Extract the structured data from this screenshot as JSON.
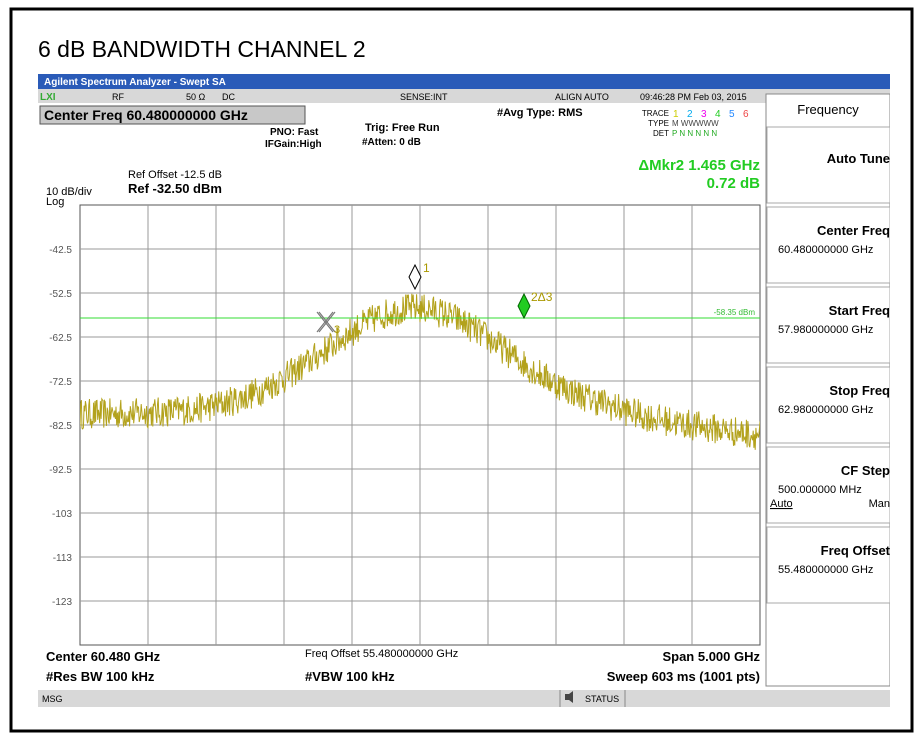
{
  "header": {
    "title": "6 dB BANDWIDTH CHANNEL 2"
  },
  "window": {
    "title": "Agilent Spectrum Analyzer - Swept SA"
  },
  "status": {
    "rf": "RF",
    "impedance": "50 Ω",
    "coupling": "DC",
    "sense": "SENSE:INT",
    "align": "ALIGN AUTO",
    "datetime": "09:46:28 PM Feb 03, 2015"
  },
  "settings": {
    "center_freq": "Center Freq 60.480000000 GHz",
    "pno": "PNO: Fast",
    "ifgain": "IFGain:High",
    "trig": "Trig: Free Run",
    "atten": "#Atten: 0 dB",
    "avg_type": "#Avg Type: RMS",
    "trace_label": "TRACE",
    "trace_numbers": [
      "1",
      "2",
      "3",
      "4",
      "5",
      "6"
    ],
    "type_label": "TYPE",
    "type_value": "M WWWWW",
    "det_label": "DET",
    "det_value": "P N N N N N"
  },
  "marker_readout": {
    "delta": "ΔMkr2 1.465 GHz",
    "level": "0.72 dB"
  },
  "reference": {
    "offset": "Ref Offset -12.5 dB",
    "level": "Ref -32.50 dBm",
    "scale": "10 dB/div",
    "log": "Log"
  },
  "grid_labels": [
    "-42.5",
    "-52.5",
    "-62.5",
    "-72.5",
    "-82.5",
    "-92.5",
    "-103",
    "-113",
    "-123"
  ],
  "markers": {
    "m1": "1",
    "m2": "2Δ3",
    "m3": "3",
    "line_label": "-58.35 dBm"
  },
  "footer": {
    "center": "Center 60.480 GHz",
    "freq_offset": "Freq Offset 55.480000000 GHz",
    "span": "Span 5.000 GHz",
    "res_bw": "#Res BW 100 kHz",
    "vbw": "#VBW 100 kHz",
    "sweep": "Sweep  603 ms (1001 pts)",
    "msg": "MSG",
    "status": "STATUS"
  },
  "menu": {
    "title": "Frequency",
    "items": [
      {
        "label": "Auto Tune"
      },
      {
        "label": "Center Freq",
        "value": "60.480000000 GHz"
      },
      {
        "label": "Start Freq",
        "value": "57.980000000 GHz"
      },
      {
        "label": "Stop Freq",
        "value": "62.980000000 GHz"
      },
      {
        "label": "CF Step",
        "value": "500.000000 MHz",
        "auto": "Auto",
        "man": "Man"
      },
      {
        "label": "Freq Offset",
        "value": "55.480000000 GHz"
      }
    ]
  }
}
